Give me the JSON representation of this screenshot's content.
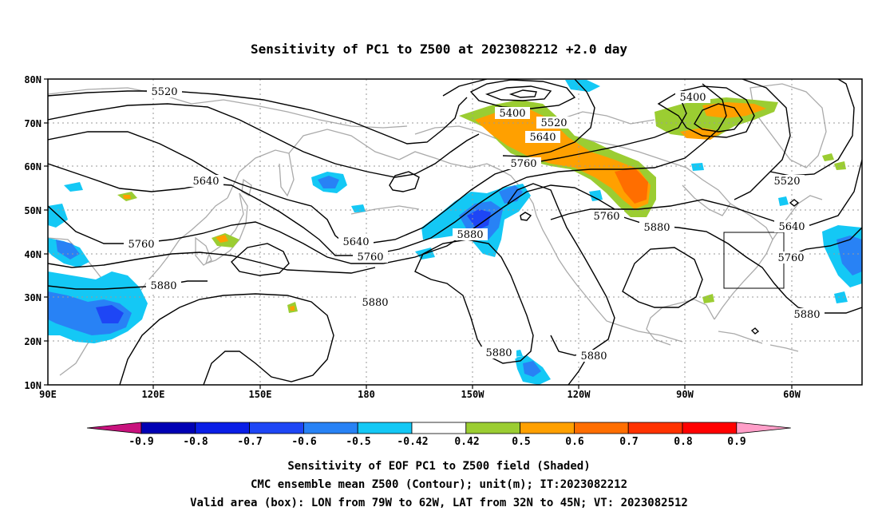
{
  "title": "Sensitivity of PC1 to Z500 at 2023082212 +2.0 day",
  "map": {
    "lat_ticks": [
      "80N",
      "70N",
      "60N",
      "50N",
      "40N",
      "30N",
      "20N",
      "10N"
    ],
    "lon_ticks": [
      "90E",
      "120E",
      "150E",
      "180",
      "150W",
      "120W",
      "90W",
      "60W"
    ],
    "extent": {
      "lon_west": "90E",
      "lon_east": "50W",
      "lat_south": "10N",
      "lat_north": "80N"
    },
    "grid": "dotted",
    "contour_labels": [
      {
        "label": "5520",
        "key": "c5520a"
      },
      {
        "label": "5400",
        "key": "c5400a"
      },
      {
        "label": "5520",
        "key": "c5520b"
      },
      {
        "label": "5400",
        "key": "c5400b"
      },
      {
        "label": "5640",
        "key": "c5640a"
      },
      {
        "label": "5760",
        "key": "c5760a"
      },
      {
        "label": "5640",
        "key": "c5640b"
      },
      {
        "label": "5520",
        "key": "c5520c"
      },
      {
        "label": "5760",
        "key": "c5760b"
      },
      {
        "label": "5640",
        "key": "c5640c"
      },
      {
        "label": "5880",
        "key": "c5880a"
      },
      {
        "label": "5640",
        "key": "c5640d"
      },
      {
        "label": "5760",
        "key": "c5760c"
      },
      {
        "label": "5880",
        "key": "c5880b"
      },
      {
        "label": "5760",
        "key": "c5760d"
      },
      {
        "label": "5760",
        "key": "c5760e"
      },
      {
        "label": "5880",
        "key": "c5880c"
      },
      {
        "label": "5880",
        "key": "c5880d"
      },
      {
        "label": "5880",
        "key": "c5880e"
      },
      {
        "label": "5880",
        "key": "c5880f"
      },
      {
        "label": "5880",
        "key": "c5880g"
      }
    ],
    "valid_box": {
      "lon_from": "79W",
      "lon_to": "62W",
      "lat_from": "32N",
      "lat_to": "45N"
    }
  },
  "colorbar": {
    "labels": [
      "-0.9",
      "-0.8",
      "-0.7",
      "-0.6",
      "-0.5",
      "-0.42",
      "0.42",
      "0.5",
      "0.6",
      "0.7",
      "0.8",
      "0.9"
    ],
    "colors": [
      "#c8127d",
      "#0000b4",
      "#0a1ee6",
      "#1e46f5",
      "#2882f5",
      "#14c8f5",
      "#ffffff",
      "#9bcd32",
      "#ffa000",
      "#ff6e00",
      "#ff3200",
      "#ff0000",
      "#ff9ec8"
    ]
  },
  "footer": {
    "line1": "Sensitivity of EOF PC1 to Z500 field (Shaded)",
    "line2": "CMC ensemble mean Z500 (Contour); unit(m); IT:2023082212",
    "line3": "Valid area (box): LON from 79W to 62W, LAT from 32N to 45N; VT: 2023082512"
  }
}
